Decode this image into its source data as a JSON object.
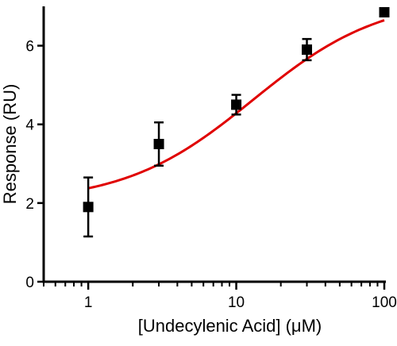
{
  "chart_data": {
    "type": "scatter",
    "xlabel": "[Undecylenic Acid] (μM)",
    "ylabel": "Response (RU)",
    "x_scale": "log",
    "xlim": [
      0.5,
      100
    ],
    "ylim": [
      0,
      7
    ],
    "x_ticks": [
      1,
      10,
      100
    ],
    "x_tick_labels": [
      "1",
      "10",
      "100"
    ],
    "y_ticks": [
      0,
      2,
      4,
      6
    ],
    "y_tick_labels": [
      "0",
      "2",
      "4",
      "6"
    ],
    "grid": false,
    "legend": "none",
    "points": [
      {
        "x": 1,
        "y": 1.9,
        "err": 0.75
      },
      {
        "x": 3,
        "y": 3.5,
        "err": 0.55
      },
      {
        "x": 10,
        "y": 4.5,
        "err": 0.25
      },
      {
        "x": 30,
        "y": 5.9,
        "err": 0.27
      },
      {
        "x": 100,
        "y": 6.85,
        "err": 0
      }
    ],
    "fit_curve": {
      "model": "sigmoidal dose-response",
      "bottom": 2.0,
      "top": 7.25,
      "ec50": 13,
      "hill": 1,
      "x_range": [
        1,
        100
      ]
    },
    "colors": {
      "points": "#000000",
      "fit": "#e00000",
      "axes": "#000000"
    }
  }
}
